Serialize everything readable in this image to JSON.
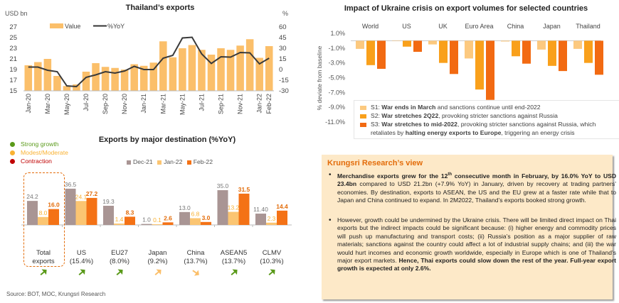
{
  "chart_data": [
    {
      "type": "bar+line",
      "title": "Thailand’s exports",
      "ylabel_left": "USD bn",
      "ylabel_right": "%",
      "ylim_left": [
        15,
        27
      ],
      "yticks_left": [
        "15",
        "17",
        "19",
        "21",
        "23",
        "25",
        "27"
      ],
      "ylim_right": [
        -30,
        60
      ],
      "yticks_right": [
        "-30",
        "-15",
        "0",
        "15",
        "30",
        "45",
        "60"
      ],
      "legend": [
        "Value",
        "%YoY"
      ],
      "legend_position": "top",
      "xtick_labels": [
        "Jan-20",
        "Mar-20",
        "May-20",
        "Jul-20",
        "Sep-20",
        "Nov-20",
        "Jan-21",
        "Mar-21",
        "May-21",
        "Jul-21",
        "Sep-21",
        "Nov-21",
        "Jan-22",
        "Feb-22"
      ],
      "categories": [
        "Jan-20",
        "Feb-20",
        "Mar-20",
        "Apr-20",
        "May-20",
        "Jun-20",
        "Jul-20",
        "Aug-20",
        "Sep-20",
        "Oct-20",
        "Nov-20",
        "Dec-20",
        "Jan-21",
        "Feb-21",
        "Mar-21",
        "Apr-21",
        "May-21",
        "Jun-21",
        "Jul-21",
        "Aug-21",
        "Sep-21",
        "Oct-21",
        "Nov-21",
        "Dec-21",
        "Jan-22",
        "Feb-22"
      ],
      "series": [
        {
          "name": "Value",
          "axis": "left",
          "type": "bar",
          "color": "#fbbf6a",
          "values": [
            19.8,
            20.4,
            21.0,
            17.8,
            15.9,
            16.2,
            18.6,
            20.2,
            19.5,
            19.3,
            19.0,
            20.0,
            19.7,
            20.3,
            24.3,
            21.3,
            23.0,
            23.6,
            22.7,
            21.8,
            23.0,
            22.7,
            23.5,
            24.7,
            21.2,
            23.4
          ]
        },
        {
          "name": "%YoY",
          "axis": "right",
          "type": "line",
          "color": "#3a3a3a",
          "values": [
            3.5,
            3.5,
            -1.0,
            -3.0,
            -23.0,
            -24.0,
            -11.0,
            -7.5,
            -3.0,
            -5.0,
            -2.0,
            4.5,
            0.0,
            0.0,
            16.0,
            20.0,
            44.5,
            45.5,
            22.0,
            8.5,
            18.0,
            17.5,
            24.0,
            23.5,
            8.0,
            16.0
          ]
        }
      ]
    },
    {
      "type": "bar",
      "title": "Impact of Ukraine crisis on export volumes for selected countries",
      "ylabel": "% deviate from baseline",
      "ylim": [
        -11,
        1
      ],
      "yticks": [
        "1.0%",
        "-1.0%",
        "-3.0%",
        "-5.0%",
        "-7.0%",
        "-9.0%",
        "-11.0%"
      ],
      "categories": [
        "World",
        "US",
        "UK",
        "Euro Area",
        "China",
        "Japan",
        "Thailand"
      ],
      "series": [
        {
          "name": "S1",
          "color": "#fcc97f",
          "values": [
            -1.1,
            -0.05,
            -0.5,
            -2.4,
            -0.1,
            -1.2,
            -1.1
          ]
        },
        {
          "name": "S2",
          "color": "#f9a01b",
          "values": [
            -3.3,
            -0.8,
            -3.0,
            -6.6,
            -2.1,
            -3.4,
            -3.0
          ]
        },
        {
          "name": "S3",
          "color": "#f26a12",
          "values": [
            -3.8,
            -1.5,
            -4.5,
            -8.0,
            -3.1,
            -4.1,
            -4.6
          ]
        }
      ],
      "legend": [
        {
          "id": "S1",
          "bold": "War ends in March",
          "rest": " and sanctions continue until end-2022"
        },
        {
          "id": "S2",
          "bold": "War stretches 2Q22",
          "rest": ", provoking stricter sanctions against Russia"
        },
        {
          "id": "S3",
          "bold": "War stretches to mid-2022",
          "rest": ", provoking stricter sanctions against Russia, which",
          "line2_pre": "retaliates by ",
          "line2_bold": "halting energy exports to Europe",
          "line2_post": ", triggering an energy crisis"
        }
      ],
      "legend_position": "bottom"
    },
    {
      "type": "bar",
      "title": "Exports by major destination (%YoY)",
      "legend": [
        "Dec-21",
        "Jan-22",
        "Feb-22"
      ],
      "legend_position": "top",
      "categories": [
        "Total exports",
        "US (15.4%)",
        "EU27 (8.0%)",
        "Japan (9.2%)",
        "China (13.7%)",
        "ASEAN5 (13.7%)",
        "CLMV (10.3%)"
      ],
      "series": [
        {
          "name": "Dec-21",
          "color": "#a99594",
          "values": [
            24.2,
            36.5,
            19.3,
            1.0,
            13.0,
            35.0,
            11.4
          ],
          "labels": [
            "24.2",
            "36.5",
            "19.3",
            "1.0",
            "13.0",
            "35.0",
            "11.40"
          ]
        },
        {
          "name": "Jan-22",
          "color": "#fbc572",
          "values": [
            8.0,
            24.1,
            1.4,
            0.1,
            6.8,
            13.2,
            2.3
          ],
          "labels": [
            "8.0",
            "24.1",
            "1.4",
            "0.1",
            "6.8",
            "13.2",
            "2.3"
          ]
        },
        {
          "name": "Feb-22",
          "color": "#f47216",
          "values": [
            16.0,
            27.2,
            8.3,
            2.6,
            3.0,
            31.5,
            14.4
          ],
          "labels": [
            "16.0",
            "27.2",
            "8.3",
            "2.6",
            "3.0",
            "31.5",
            "14.4"
          ]
        }
      ],
      "status": [
        "strong",
        "strong",
        "strong",
        "moderate-up",
        "moderate-down",
        "strong",
        "strong"
      ]
    }
  ],
  "dest": {
    "cat_line1": [
      "Total",
      "US",
      "EU27",
      "Japan",
      "China",
      "ASEAN5",
      "CLMV"
    ],
    "cat_line2": [
      "exports",
      "(15.4%)",
      "(8.0%)",
      "(9.2%)",
      "(13.7%)",
      "(13.7%)",
      "(10.3%)"
    ],
    "status_legend": [
      {
        "label": "Strong growth",
        "color": "#5a9a1a"
      },
      {
        "label": "Modest/Moderate",
        "color": "#f9b233"
      },
      {
        "label": "Contraction",
        "color": "#c00000"
      }
    ],
    "arrow_icons": [
      "arrow-up-right-icon",
      "arrow-up-right-icon",
      "arrow-up-right-icon",
      "arrow-up-right-icon",
      "arrow-down-right-icon",
      "arrow-up-right-icon",
      "arrow-up-right-icon"
    ]
  },
  "source": "Source: BOT, MOC, Krungsri Research",
  "view": {
    "title": "Krungsri Research’s view",
    "b1_bold1": "Merchandise exports grew for the 12",
    "b1_sup": "th",
    "b1_bold2": " consecutive month in February, by 16.0% YoY to USD 23.4bn",
    "b1_rest": " compared to USD 21.2bn (+7.9% YoY) in January, driven by recovery at trading partners’ economies. By destination, exports to ASEAN, the US and the EU grew at a faster rate while that to Japan and China continued to expand. In 2M2022, Thailand’s exports booked strong growth.",
    "b2_rest": "However, growth could be undermined by the Ukraine crisis. There will be limited direct impact on Thai exports but the indirect impacts could be significant because: (i) higher energy and commodity prices will push up manufacturing and transport costs; (ii) Russia’s position as a major supplier of raw materials; sanctions against the country could  affect a lot of industrial supply chains; and (iii) the war would hurt incomes and economic growth worldwide, especially in Europe which is one of Thailand’s major export markets. ",
    "b2_bold": "Hence, Thai exports could slow down the rest of the year. Full-year export growth is expected at only 2.6%."
  }
}
